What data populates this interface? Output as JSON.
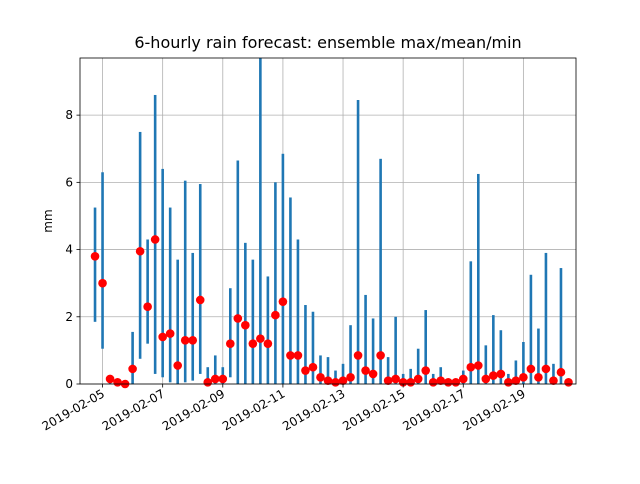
{
  "chart_data": {
    "type": "bar",
    "title": "6-hourly rain forecast: ensemble max/mean/min",
    "xlabel": "",
    "ylabel": "mm",
    "x_range": [
      "2019-02-04T06:00",
      "2019-02-20T18:00"
    ],
    "ylim": [
      0,
      9.7
    ],
    "x_ticks": [
      "2019-02-05",
      "2019-02-07",
      "2019-02-09",
      "2019-02-11",
      "2019-02-13",
      "2019-02-15",
      "2019-02-17",
      "2019-02-19"
    ],
    "y_ticks": [
      0,
      2,
      4,
      6,
      8
    ],
    "grid": true,
    "x_tick_rotation_deg": -30,
    "colors": {
      "bar": "#1f77b4",
      "mean": "#ff0000",
      "grid": "#b0b0b0"
    },
    "x": [
      "2019-02-04T18:00",
      "2019-02-05T00:00",
      "2019-02-05T06:00",
      "2019-02-05T12:00",
      "2019-02-05T18:00",
      "2019-02-06T00:00",
      "2019-02-06T06:00",
      "2019-02-06T12:00",
      "2019-02-06T18:00",
      "2019-02-07T00:00",
      "2019-02-07T06:00",
      "2019-02-07T12:00",
      "2019-02-07T18:00",
      "2019-02-08T00:00",
      "2019-02-08T06:00",
      "2019-02-08T12:00",
      "2019-02-08T18:00",
      "2019-02-09T00:00",
      "2019-02-09T06:00",
      "2019-02-09T12:00",
      "2019-02-09T18:00",
      "2019-02-10T00:00",
      "2019-02-10T06:00",
      "2019-02-10T12:00",
      "2019-02-10T18:00",
      "2019-02-11T00:00",
      "2019-02-11T06:00",
      "2019-02-11T12:00",
      "2019-02-11T18:00",
      "2019-02-12T00:00",
      "2019-02-12T06:00",
      "2019-02-12T12:00",
      "2019-02-12T18:00",
      "2019-02-13T00:00",
      "2019-02-13T06:00",
      "2019-02-13T12:00",
      "2019-02-13T18:00",
      "2019-02-14T00:00",
      "2019-02-14T06:00",
      "2019-02-14T12:00",
      "2019-02-14T18:00",
      "2019-02-15T00:00",
      "2019-02-15T06:00",
      "2019-02-15T12:00",
      "2019-02-15T18:00",
      "2019-02-16T00:00",
      "2019-02-16T06:00",
      "2019-02-16T12:00",
      "2019-02-16T18:00",
      "2019-02-17T00:00",
      "2019-02-17T06:00",
      "2019-02-17T12:00",
      "2019-02-17T18:00",
      "2019-02-18T00:00",
      "2019-02-18T06:00",
      "2019-02-18T12:00",
      "2019-02-18T18:00",
      "2019-02-19T00:00",
      "2019-02-19T06:00",
      "2019-02-19T12:00",
      "2019-02-19T18:00",
      "2019-02-20T00:00",
      "2019-02-20T06:00"
    ],
    "series": [
      {
        "name": "",
        "values": [
          5.25,
          6.3,
          0.2,
          0.1,
          0.05,
          1.55,
          7.5,
          4.3,
          8.6,
          6.4,
          5.25,
          3.7,
          6.05,
          3.9,
          5.95,
          0.5,
          0.85,
          0.5,
          2.85,
          6.65,
          4.2,
          3.7,
          9.7,
          3.2,
          6.0,
          6.85,
          5.55,
          4.3,
          2.35,
          2.15,
          0.85,
          0.8,
          0.4,
          0.6,
          1.75,
          8.45,
          2.65,
          1.95,
          6.7,
          0.8,
          2.0,
          0.3,
          0.45,
          1.05,
          2.2,
          0.3,
          0.5,
          0.1,
          0.1,
          0.4,
          3.65,
          6.25,
          1.15,
          2.05,
          1.6,
          0.3,
          0.7,
          1.25,
          3.25,
          1.65,
          3.9,
          0.6,
          3.45
        ]
      },
      {
        "name": "",
        "values": [
          1.85,
          1.05,
          0.0,
          0.0,
          0.0,
          0.0,
          0.75,
          1.2,
          0.3,
          0.2,
          0.05,
          0.0,
          0.05,
          0.1,
          0.3,
          0.0,
          0.0,
          0.0,
          0.2,
          0.0,
          0.0,
          0.0,
          0.0,
          0.0,
          0.0,
          0.0,
          0.0,
          0.0,
          0.0,
          0.0,
          0.0,
          0.0,
          0.0,
          0.0,
          0.0,
          0.0,
          0.0,
          0.0,
          0.0,
          0.0,
          0.0,
          0.0,
          0.0,
          0.0,
          0.0,
          0.0,
          0.0,
          0.0,
          0.0,
          0.0,
          0.0,
          0.0,
          0.0,
          0.0,
          0.0,
          0.0,
          0.0,
          0.0,
          0.0,
          0.0,
          0.0,
          0.0,
          0.0
        ]
      },
      {
        "name": "",
        "values": [
          3.8,
          3.0,
          0.15,
          0.05,
          0.0,
          0.45,
          3.95,
          2.3,
          4.3,
          1.4,
          1.5,
          0.55,
          1.3,
          1.3,
          2.5,
          0.05,
          0.15,
          0.15,
          1.2,
          1.95,
          1.75,
          1.2,
          1.35,
          1.2,
          2.05,
          2.45,
          0.85,
          0.85,
          0.4,
          0.5,
          0.2,
          0.1,
          0.05,
          0.1,
          0.2,
          0.85,
          0.4,
          0.3,
          0.85,
          0.1,
          0.15,
          0.05,
          0.05,
          0.15,
          0.4,
          0.05,
          0.1,
          0.05,
          0.05,
          0.15,
          0.5,
          0.55,
          0.15,
          0.25,
          0.3,
          0.05,
          0.1,
          0.2,
          0.45,
          0.2,
          0.45,
          0.1,
          0.35
        ]
      }
    ],
    "extra_mean_points": [
      {
        "x": "2019-02-20T12:00",
        "y": 0.05
      }
    ]
  }
}
